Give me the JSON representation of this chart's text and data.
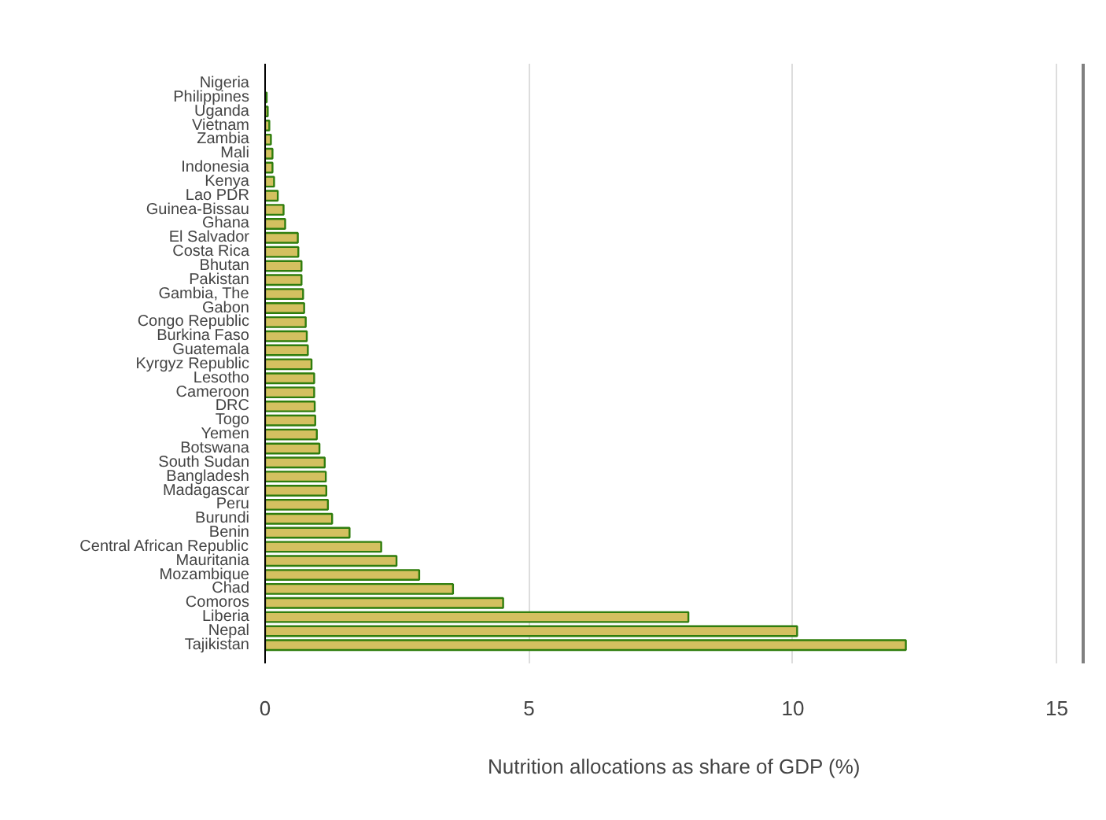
{
  "chart_data": {
    "type": "bar",
    "orientation": "horizontal",
    "xlabel": "Nutrition allocations as share of GDP (%)",
    "categories": [
      "Nigeria",
      "Philippines",
      "Uganda",
      "Vietnam",
      "Zambia",
      "Mali",
      "Indonesia",
      "Kenya",
      "Lao PDR",
      "Guinea-Bissau",
      "Ghana",
      "El Salvador",
      "Costa Rica",
      "Bhutan",
      "Pakistan",
      "Gambia, The",
      "Gabon",
      "Congo Republic",
      "Burkina Faso",
      "Guatemala",
      "Kyrgyz Republic",
      "Lesotho",
      "Cameroon",
      "DRC",
      "Togo",
      "Yemen",
      "Botswana",
      "South Sudan",
      "Bangladesh",
      "Madagascar",
      "Peru",
      "Burundi",
      "Benin",
      "Central African Republic",
      "Mauritania",
      "Mozambique",
      "Chad",
      "Comoros",
      "Liberia",
      "Nepal",
      "Tajikistan"
    ],
    "values": [
      null,
      0.03,
      0.05,
      0.08,
      0.11,
      0.14,
      0.14,
      0.17,
      0.24,
      0.35,
      0.38,
      0.62,
      0.63,
      0.69,
      0.69,
      0.72,
      0.74,
      0.77,
      0.79,
      0.81,
      0.88,
      0.93,
      0.93,
      0.94,
      0.95,
      0.98,
      1.03,
      1.13,
      1.15,
      1.16,
      1.19,
      1.27,
      1.6,
      2.2,
      2.49,
      2.92,
      3.56,
      4.51,
      8.02,
      10.08,
      12.14
    ],
    "color": "#d4c060",
    "xlim": [
      0,
      15.5
    ],
    "xticks": [
      0,
      5,
      10,
      15
    ],
    "grid": "x"
  }
}
